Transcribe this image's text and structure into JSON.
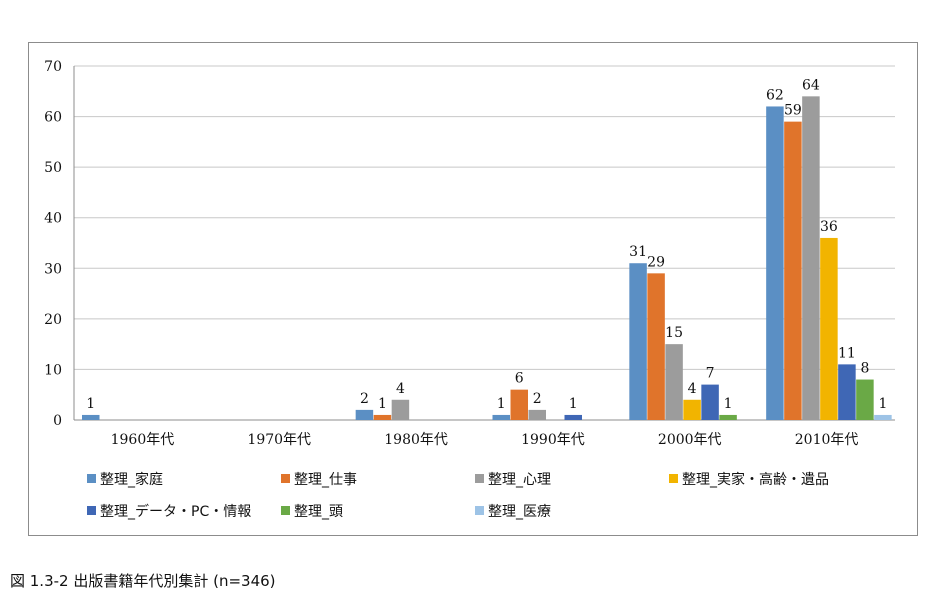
{
  "caption": "図 1.3-2 出版書籍年代別集計 (n=346)",
  "chart_data": {
    "type": "bar",
    "title": "",
    "xlabel": "",
    "ylabel": "",
    "ylim": [
      0,
      70
    ],
    "yticks": [
      0,
      10,
      20,
      30,
      40,
      50,
      60,
      70
    ],
    "grid": true,
    "legend_position": "bottom",
    "categories": [
      "1960年代",
      "1970年代",
      "1980年代",
      "1990年代",
      "2000年代",
      "2010年代"
    ],
    "series": [
      {
        "name": "整理_家庭",
        "color": "#5b8fc4",
        "values": [
          1,
          null,
          2,
          1,
          31,
          62
        ]
      },
      {
        "name": "整理_仕事",
        "color": "#e0742b",
        "values": [
          null,
          null,
          1,
          6,
          29,
          59
        ]
      },
      {
        "name": "整理_心理",
        "color": "#9c9c9c",
        "values": [
          null,
          null,
          4,
          2,
          15,
          64
        ]
      },
      {
        "name": "整理_実家・高齢・遺品",
        "color": "#f2b400",
        "values": [
          null,
          null,
          null,
          null,
          4,
          36
        ]
      },
      {
        "name": "整理_データ・PC・情報",
        "color": "#3f67b5",
        "values": [
          null,
          null,
          null,
          1,
          7,
          11
        ]
      },
      {
        "name": "整理_頭",
        "color": "#6aa946",
        "values": [
          null,
          null,
          null,
          null,
          1,
          8
        ]
      },
      {
        "name": "整理_医療",
        "color": "#9dc3e6",
        "values": [
          null,
          null,
          null,
          null,
          null,
          1
        ]
      }
    ]
  }
}
